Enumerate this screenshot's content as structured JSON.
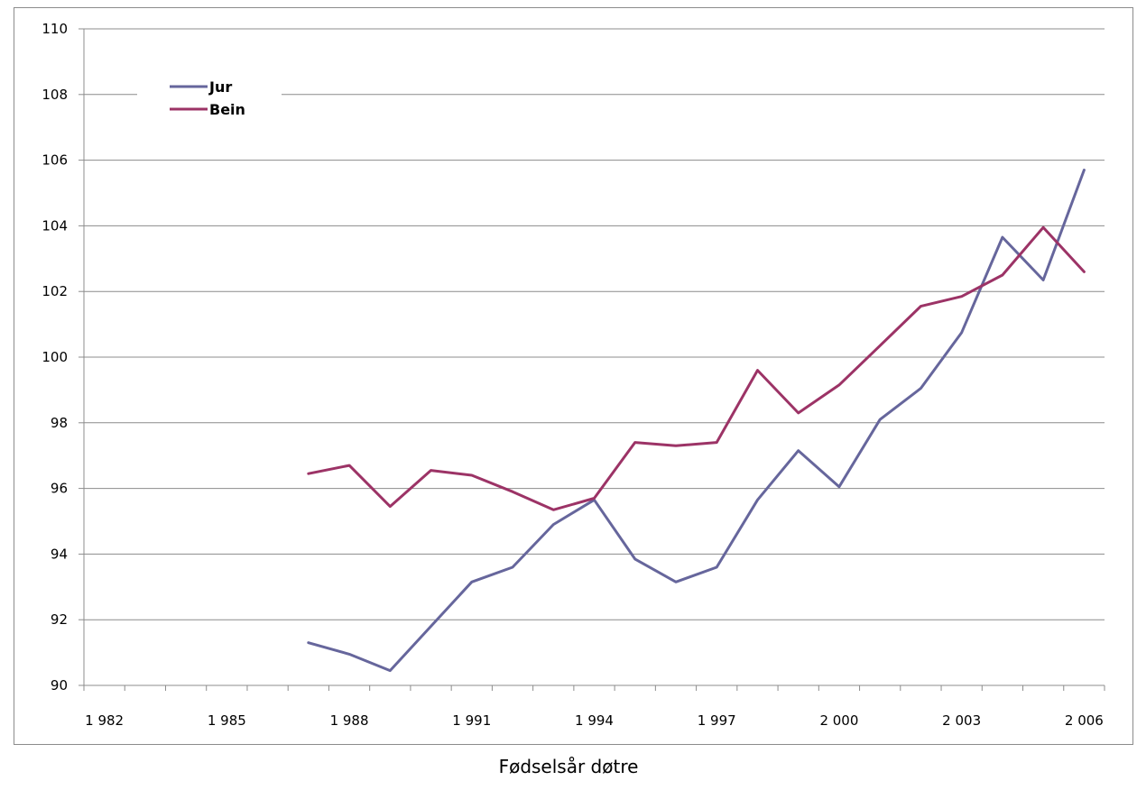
{
  "chart_data": {
    "type": "line",
    "title": "",
    "xlabel": "Fødselsår døtre",
    "ylabel": "",
    "x_tick_labels": [
      "1 982",
      "1 985",
      "1 988",
      "1 991",
      "1 994",
      "1 997",
      "2 000",
      "2 003",
      "2 006"
    ],
    "y_tick_labels": [
      "90",
      "92",
      "94",
      "96",
      "98",
      "100",
      "102",
      "104",
      "106",
      "108",
      "110"
    ],
    "xlim": [
      1981.5,
      2006.5
    ],
    "ylim": [
      90,
      110
    ],
    "x_tick_values": [
      1982,
      1985,
      1988,
      1991,
      1994,
      1997,
      2000,
      2003,
      2006
    ],
    "y_tick_values": [
      90,
      92,
      94,
      96,
      98,
      100,
      102,
      104,
      106,
      108,
      110
    ],
    "grid": "horizontal",
    "legend_position": "top-left",
    "x": [
      1987,
      1988,
      1989,
      1990,
      1991,
      1992,
      1993,
      1994,
      1995,
      1996,
      1997,
      1998,
      1999,
      2000,
      2001,
      2002,
      2003,
      2004,
      2005,
      2006
    ],
    "series": [
      {
        "name": "Jur",
        "color": "#66669c",
        "values": [
          91.3,
          90.95,
          90.45,
          91.8,
          93.15,
          93.6,
          94.9,
          95.65,
          93.85,
          93.15,
          93.6,
          95.65,
          97.15,
          96.05,
          98.1,
          99.05,
          100.75,
          103.65,
          102.35,
          105.7
        ]
      },
      {
        "name": "Bein",
        "color": "#9c3366",
        "values": [
          96.45,
          96.7,
          95.45,
          96.55,
          96.4,
          95.9,
          95.35,
          95.7,
          97.4,
          97.3,
          97.4,
          99.6,
          98.3,
          99.15,
          100.35,
          101.55,
          101.85,
          102.5,
          103.95,
          102.6
        ]
      }
    ]
  }
}
